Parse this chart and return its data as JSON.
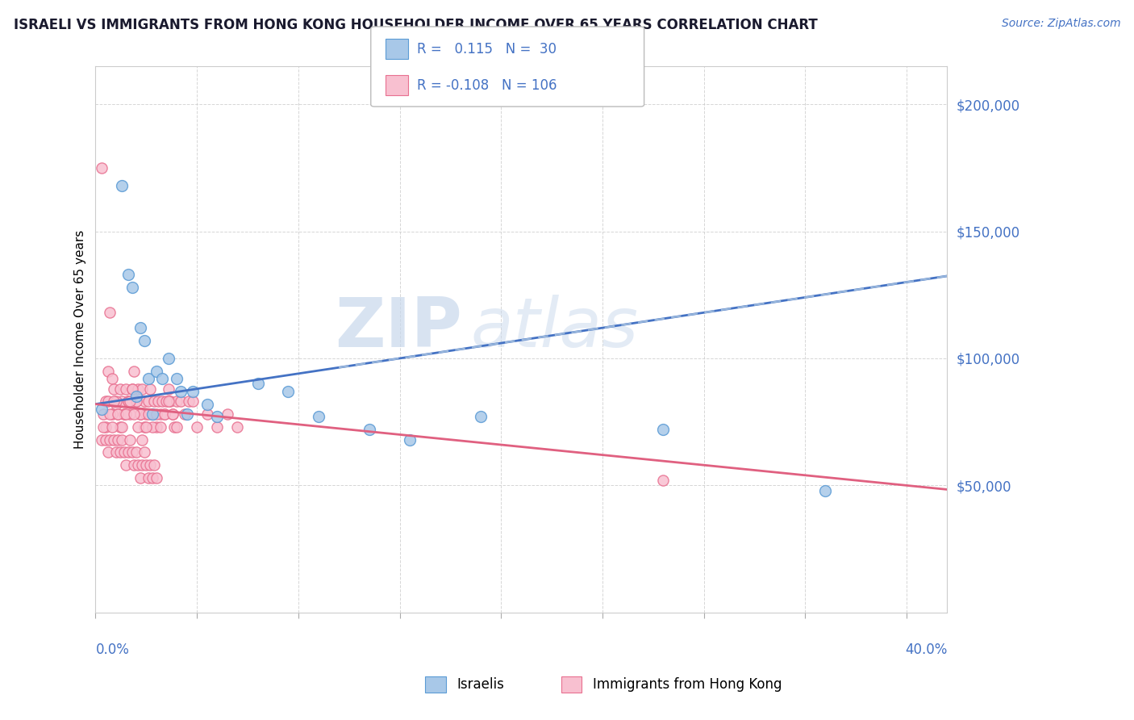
{
  "title": "ISRAELI VS IMMIGRANTS FROM HONG KONG HOUSEHOLDER INCOME OVER 65 YEARS CORRELATION CHART",
  "source": "Source: ZipAtlas.com",
  "ylabel": "Householder Income Over 65 years",
  "xlim": [
    0.0,
    0.42
  ],
  "ylim": [
    0,
    215000
  ],
  "watermark1": "ZIP",
  "watermark2": "atlas",
  "blue_color": "#a8c8e8",
  "blue_edge_color": "#5b9bd5",
  "pink_color": "#f8c0d0",
  "pink_edge_color": "#e87090",
  "blue_trend_color": "#4472c4",
  "pink_trend_color": "#e06080",
  "blue_trend_dashed_color": "#9ab8dc",
  "israelis_x": [
    0.003,
    0.013,
    0.016,
    0.018,
    0.02,
    0.022,
    0.024,
    0.026,
    0.028,
    0.03,
    0.033,
    0.036,
    0.04,
    0.042,
    0.045,
    0.048,
    0.055,
    0.06,
    0.08,
    0.095,
    0.11,
    0.135,
    0.155,
    0.19,
    0.28,
    0.36
  ],
  "israelis_y": [
    80000,
    168000,
    133000,
    128000,
    85000,
    112000,
    107000,
    92000,
    78000,
    95000,
    92000,
    100000,
    92000,
    87000,
    78000,
    87000,
    82000,
    77000,
    90000,
    87000,
    77000,
    72000,
    68000,
    77000,
    72000,
    48000
  ],
  "hk_x": [
    0.003,
    0.005,
    0.006,
    0.007,
    0.008,
    0.009,
    0.01,
    0.011,
    0.012,
    0.013,
    0.014,
    0.015,
    0.016,
    0.017,
    0.018,
    0.019,
    0.02,
    0.021,
    0.022,
    0.023,
    0.024,
    0.025,
    0.026,
    0.027,
    0.028,
    0.029,
    0.03,
    0.031,
    0.032,
    0.033,
    0.034,
    0.035,
    0.036,
    0.037,
    0.038,
    0.039,
    0.04,
    0.042,
    0.044,
    0.046,
    0.048,
    0.05,
    0.055,
    0.06,
    0.065,
    0.07,
    0.004,
    0.006,
    0.008,
    0.01,
    0.012,
    0.014,
    0.016,
    0.018,
    0.02,
    0.022,
    0.024,
    0.026,
    0.028,
    0.03,
    0.032,
    0.034,
    0.036,
    0.038,
    0.04,
    0.005,
    0.007,
    0.009,
    0.011,
    0.013,
    0.015,
    0.017,
    0.019,
    0.021,
    0.023,
    0.025,
    0.003,
    0.004,
    0.005,
    0.006,
    0.007,
    0.008,
    0.009,
    0.01,
    0.011,
    0.012,
    0.013,
    0.014,
    0.015,
    0.016,
    0.017,
    0.018,
    0.019,
    0.02,
    0.021,
    0.022,
    0.023,
    0.024,
    0.025,
    0.026,
    0.027,
    0.028,
    0.029,
    0.03,
    0.28
  ],
  "hk_y": [
    175000,
    83000,
    95000,
    118000,
    92000,
    88000,
    82000,
    78000,
    88000,
    83000,
    78000,
    88000,
    83000,
    78000,
    88000,
    95000,
    83000,
    88000,
    78000,
    88000,
    83000,
    78000,
    83000,
    88000,
    78000,
    83000,
    73000,
    83000,
    78000,
    83000,
    78000,
    83000,
    88000,
    83000,
    78000,
    73000,
    83000,
    83000,
    78000,
    83000,
    83000,
    73000,
    78000,
    73000,
    78000,
    73000,
    78000,
    83000,
    78000,
    83000,
    73000,
    78000,
    83000,
    88000,
    83000,
    78000,
    73000,
    78000,
    73000,
    78000,
    73000,
    78000,
    83000,
    78000,
    73000,
    73000,
    78000,
    83000,
    78000,
    73000,
    78000,
    83000,
    78000,
    73000,
    68000,
    73000,
    68000,
    73000,
    68000,
    63000,
    68000,
    73000,
    68000,
    63000,
    68000,
    63000,
    68000,
    63000,
    58000,
    63000,
    68000,
    63000,
    58000,
    63000,
    58000,
    53000,
    58000,
    63000,
    58000,
    53000,
    58000,
    53000,
    58000,
    53000,
    52000
  ]
}
